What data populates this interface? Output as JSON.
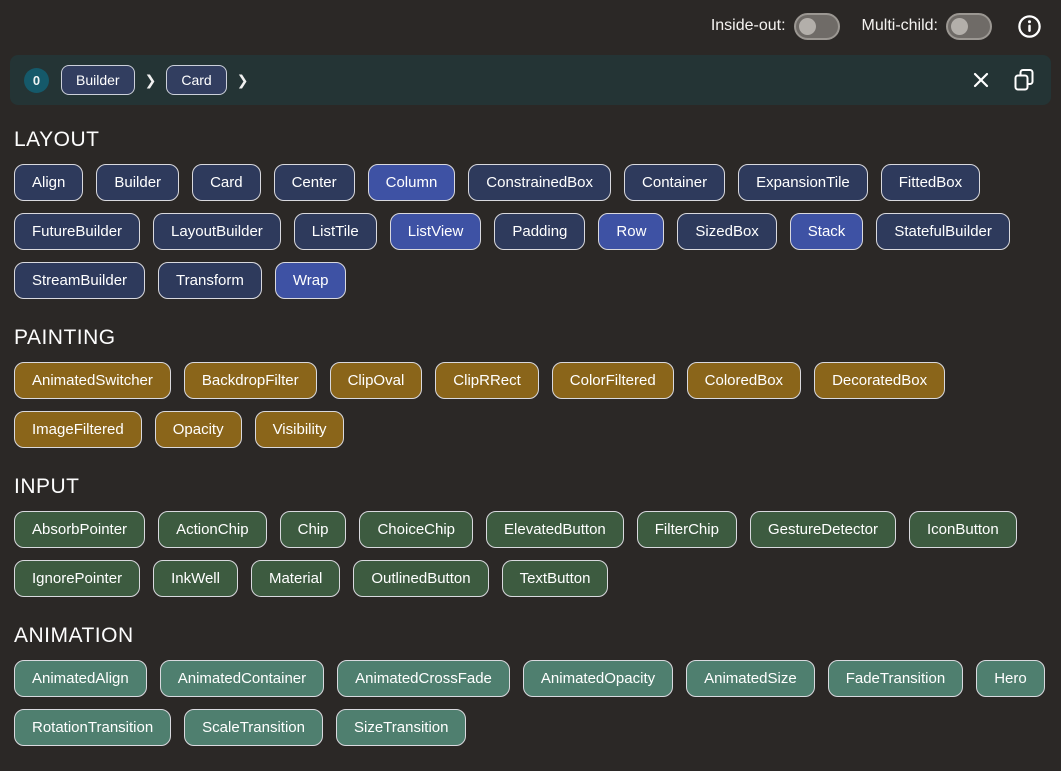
{
  "topbar": {
    "inside_out_label": "Inside-out:",
    "inside_out_state": "off",
    "multi_child_label": "Multi-child:",
    "multi_child_state": "off"
  },
  "breadcrumb": {
    "badge": "0",
    "items": [
      "Builder",
      "Card"
    ],
    "separator": "❯"
  },
  "colors": {
    "page_bg": "#2b2826",
    "bar_bg": "#243435",
    "badge_bg": "#15596a",
    "breadcrumb_chip_bg": "#323e60",
    "chip_border": "#d9d9de",
    "layout_chip": "#2e3a5c",
    "layout_chip_highlight": "#3e52a4",
    "painting_chip": "#8a651a",
    "input_chip": "#3d5b40",
    "animation_chip": "#4f7f6f"
  },
  "sections": [
    {
      "title": "LAYOUT",
      "chip_bg": "#2e3a5c",
      "chip_bg_highlight": "#3e52a4",
      "chips": [
        {
          "label": "Align"
        },
        {
          "label": "Builder"
        },
        {
          "label": "Card"
        },
        {
          "label": "Center"
        },
        {
          "label": "Column",
          "highlighted": true
        },
        {
          "label": "ConstrainedBox"
        },
        {
          "label": "Container"
        },
        {
          "label": "ExpansionTile"
        },
        {
          "label": "FittedBox"
        },
        {
          "label": "FutureBuilder"
        },
        {
          "label": "LayoutBuilder"
        },
        {
          "label": "ListTile"
        },
        {
          "label": "ListView",
          "highlighted": true
        },
        {
          "label": "Padding"
        },
        {
          "label": "Row",
          "highlighted": true
        },
        {
          "label": "SizedBox"
        },
        {
          "label": "Stack",
          "highlighted": true
        },
        {
          "label": "StatefulBuilder"
        },
        {
          "label": "StreamBuilder"
        },
        {
          "label": "Transform"
        },
        {
          "label": "Wrap",
          "highlighted": true
        }
      ]
    },
    {
      "title": "PAINTING",
      "chip_bg": "#8a651a",
      "chip_bg_highlight": "#8a651a",
      "chips": [
        {
          "label": "AnimatedSwitcher"
        },
        {
          "label": "BackdropFilter"
        },
        {
          "label": "ClipOval"
        },
        {
          "label": "ClipRRect"
        },
        {
          "label": "ColorFiltered"
        },
        {
          "label": "ColoredBox"
        },
        {
          "label": "DecoratedBox"
        },
        {
          "label": "ImageFiltered"
        },
        {
          "label": "Opacity"
        },
        {
          "label": "Visibility"
        }
      ]
    },
    {
      "title": "INPUT",
      "chip_bg": "#3d5b40",
      "chip_bg_highlight": "#3d5b40",
      "chips": [
        {
          "label": "AbsorbPointer"
        },
        {
          "label": "ActionChip"
        },
        {
          "label": "Chip"
        },
        {
          "label": "ChoiceChip"
        },
        {
          "label": "ElevatedButton"
        },
        {
          "label": "FilterChip"
        },
        {
          "label": "GestureDetector"
        },
        {
          "label": "IconButton"
        },
        {
          "label": "IgnorePointer"
        },
        {
          "label": "InkWell"
        },
        {
          "label": "Material"
        },
        {
          "label": "OutlinedButton"
        },
        {
          "label": "TextButton"
        }
      ]
    },
    {
      "title": "ANIMATION",
      "chip_bg": "#4f7f6f",
      "chip_bg_highlight": "#4f7f6f",
      "chips": [
        {
          "label": "AnimatedAlign"
        },
        {
          "label": "AnimatedContainer"
        },
        {
          "label": "AnimatedCrossFade"
        },
        {
          "label": "AnimatedOpacity"
        },
        {
          "label": "AnimatedSize"
        },
        {
          "label": "FadeTransition"
        },
        {
          "label": "Hero"
        },
        {
          "label": "RotationTransition"
        },
        {
          "label": "ScaleTransition"
        },
        {
          "label": "SizeTransition"
        }
      ]
    }
  ]
}
